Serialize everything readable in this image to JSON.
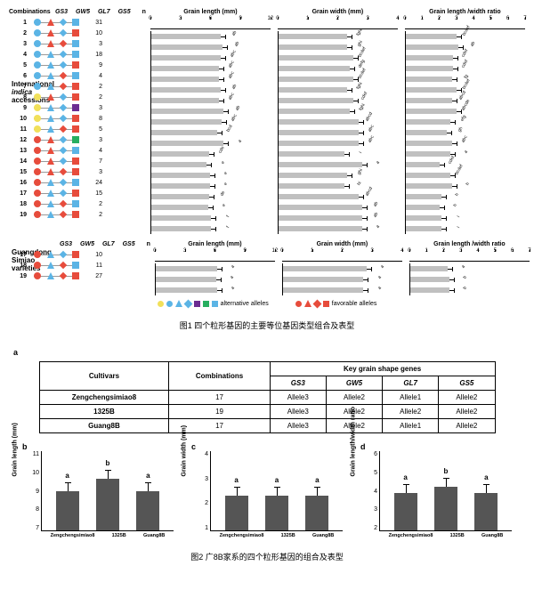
{
  "fig1": {
    "gene_headers": [
      "GS3",
      "GW5",
      "GL7",
      "GS5"
    ],
    "n_header": "n",
    "combo_label": "Combinations",
    "side_label_1a": "International",
    "side_label_1b": "indica",
    "side_label_1c": "accessions",
    "side_label_2a": "Guangdong",
    "side_label_2b": "Simiao",
    "side_label_2c": "varieties",
    "rows": [
      {
        "num": "1",
        "n": "31",
        "m": [
          [
            "c",
            "#5bb4e5"
          ],
          [
            "t",
            "#e74c3c"
          ],
          [
            "d",
            "#5bb4e5"
          ],
          [
            "s",
            "#5bb4e5"
          ]
        ]
      },
      {
        "num": "2",
        "n": "10",
        "m": [
          [
            "c",
            "#5bb4e5"
          ],
          [
            "t",
            "#e74c3c"
          ],
          [
            "d",
            "#5bb4e5"
          ],
          [
            "s",
            "#e74c3c"
          ]
        ]
      },
      {
        "num": "3",
        "n": "3",
        "m": [
          [
            "c",
            "#5bb4e5"
          ],
          [
            "t",
            "#e74c3c"
          ],
          [
            "d",
            "#e74c3c"
          ],
          [
            "s",
            "#5bb4e5"
          ]
        ]
      },
      {
        "num": "4",
        "n": "18",
        "m": [
          [
            "c",
            "#5bb4e5"
          ],
          [
            "t",
            "#5bb4e5"
          ],
          [
            "d",
            "#5bb4e5"
          ],
          [
            "s",
            "#5bb4e5"
          ]
        ]
      },
      {
        "num": "5",
        "n": "9",
        "m": [
          [
            "c",
            "#5bb4e5"
          ],
          [
            "t",
            "#5bb4e5"
          ],
          [
            "d",
            "#5bb4e5"
          ],
          [
            "s",
            "#e74c3c"
          ]
        ]
      },
      {
        "num": "6",
        "n": "4",
        "m": [
          [
            "c",
            "#5bb4e5"
          ],
          [
            "t",
            "#5bb4e5"
          ],
          [
            "d",
            "#e74c3c"
          ],
          [
            "s",
            "#5bb4e5"
          ]
        ]
      },
      {
        "num": "7",
        "n": "2",
        "m": [
          [
            "c",
            "#5bb4e5"
          ],
          [
            "t",
            "#5bb4e5"
          ],
          [
            "d",
            "#e74c3c"
          ],
          [
            "s",
            "#e74c3c"
          ]
        ]
      },
      {
        "num": "8",
        "n": "2",
        "m": [
          [
            "c",
            "#f1e05a"
          ],
          [
            "t",
            "#e74c3c"
          ],
          [
            "d",
            "#5bb4e5"
          ],
          [
            "s",
            "#e74c3c"
          ]
        ]
      },
      {
        "num": "9",
        "n": "3",
        "m": [
          [
            "c",
            "#f1e05a"
          ],
          [
            "t",
            "#5bb4e5"
          ],
          [
            "d",
            "#5bb4e5"
          ],
          [
            "s",
            "#6b2c91"
          ]
        ]
      },
      {
        "num": "10",
        "n": "8",
        "m": [
          [
            "c",
            "#f1e05a"
          ],
          [
            "t",
            "#5bb4e5"
          ],
          [
            "d",
            "#5bb4e5"
          ],
          [
            "s",
            "#e74c3c"
          ]
        ]
      },
      {
        "num": "11",
        "n": "5",
        "m": [
          [
            "c",
            "#f1e05a"
          ],
          [
            "t",
            "#5bb4e5"
          ],
          [
            "d",
            "#e74c3c"
          ],
          [
            "s",
            "#e74c3c"
          ]
        ]
      },
      {
        "num": "12",
        "n": "3",
        "m": [
          [
            "c",
            "#e74c3c"
          ],
          [
            "t",
            "#e74c3c"
          ],
          [
            "d",
            "#5bb4e5"
          ],
          [
            "s",
            "#27ae60"
          ]
        ]
      },
      {
        "num": "13",
        "n": "4",
        "m": [
          [
            "c",
            "#e74c3c"
          ],
          [
            "t",
            "#e74c3c"
          ],
          [
            "d",
            "#5bb4e5"
          ],
          [
            "s",
            "#5bb4e5"
          ]
        ]
      },
      {
        "num": "14",
        "n": "7",
        "m": [
          [
            "c",
            "#e74c3c"
          ],
          [
            "t",
            "#e74c3c"
          ],
          [
            "d",
            "#5bb4e5"
          ],
          [
            "s",
            "#e74c3c"
          ]
        ]
      },
      {
        "num": "15",
        "n": "3",
        "m": [
          [
            "c",
            "#e74c3c"
          ],
          [
            "t",
            "#e74c3c"
          ],
          [
            "d",
            "#e74c3c"
          ],
          [
            "s",
            "#e74c3c"
          ]
        ]
      },
      {
        "num": "16",
        "n": "24",
        "m": [
          [
            "c",
            "#e74c3c"
          ],
          [
            "t",
            "#5bb4e5"
          ],
          [
            "d",
            "#5bb4e5"
          ],
          [
            "s",
            "#5bb4e5"
          ]
        ]
      },
      {
        "num": "17",
        "n": "15",
        "m": [
          [
            "c",
            "#e74c3c"
          ],
          [
            "t",
            "#5bb4e5"
          ],
          [
            "d",
            "#5bb4e5"
          ],
          [
            "s",
            "#e74c3c"
          ]
        ]
      },
      {
        "num": "18",
        "n": "2",
        "m": [
          [
            "c",
            "#e74c3c"
          ],
          [
            "t",
            "#5bb4e5"
          ],
          [
            "d",
            "#e74c3c"
          ],
          [
            "s",
            "#5bb4e5"
          ]
        ]
      },
      {
        "num": "19",
        "n": "2",
        "m": [
          [
            "c",
            "#e74c3c"
          ],
          [
            "t",
            "#5bb4e5"
          ],
          [
            "d",
            "#e74c3c"
          ],
          [
            "s",
            "#e74c3c"
          ]
        ]
      }
    ],
    "rows2": [
      {
        "num": "17",
        "n": "10",
        "m": [
          [
            "c",
            "#e74c3c"
          ],
          [
            "t",
            "#5bb4e5"
          ],
          [
            "d",
            "#5bb4e5"
          ],
          [
            "s",
            "#e74c3c"
          ]
        ]
      },
      {
        "num": "18",
        "n": "11",
        "m": [
          [
            "c",
            "#e74c3c"
          ],
          [
            "t",
            "#5bb4e5"
          ],
          [
            "d",
            "#e74c3c"
          ],
          [
            "s",
            "#5bb4e5"
          ]
        ]
      },
      {
        "num": "19",
        "n": "27",
        "m": [
          [
            "c",
            "#e74c3c"
          ],
          [
            "t",
            "#5bb4e5"
          ],
          [
            "d",
            "#e74c3c"
          ],
          [
            "s",
            "#e74c3c"
          ]
        ]
      }
    ],
    "charts": [
      {
        "title": "Grain length (mm)",
        "min": 0,
        "max": 12,
        "ticks": [
          0,
          3,
          6,
          9,
          12
        ],
        "bars": [
          {
            "v": 7.0,
            "s": "ab"
          },
          {
            "v": 7.2,
            "s": "ab"
          },
          {
            "v": 7.0,
            "s": "abc"
          },
          {
            "v": 6.8,
            "s": "abc"
          },
          {
            "v": 6.8,
            "s": "abc"
          },
          {
            "v": 7.0,
            "s": "ab"
          },
          {
            "v": 6.8,
            "s": "abc"
          },
          {
            "v": 7.3,
            "s": "ab"
          },
          {
            "v": 7.1,
            "s": "abc"
          },
          {
            "v": 6.6,
            "s": "bcd"
          },
          {
            "v": 7.3,
            "s": "a"
          },
          {
            "v": 5.8,
            "s": "cde"
          },
          {
            "v": 5.6,
            "s": "e"
          },
          {
            "v": 5.9,
            "s": "e"
          },
          {
            "v": 5.9,
            "s": "e"
          },
          {
            "v": 5.8,
            "s": "de"
          },
          {
            "v": 5.7,
            "s": "e"
          },
          {
            "v": 6.0,
            "s": "f"
          },
          {
            "v": 6.0,
            "s": "f"
          }
        ]
      },
      {
        "title": "Grain width (mm)",
        "min": 0,
        "max": 4,
        "ticks": [
          0,
          1,
          2,
          3,
          4
        ],
        "bars": [
          {
            "v": 2.3,
            "s": "fghi"
          },
          {
            "v": 2.3,
            "s": "ghi"
          },
          {
            "v": 2.5,
            "s": "bcdef"
          },
          {
            "v": 2.4,
            "s": "defg"
          },
          {
            "v": 2.5,
            "s": "bcdef"
          },
          {
            "v": 2.3,
            "s": "fghi"
          },
          {
            "v": 2.5,
            "s": "cdef"
          },
          {
            "v": 2.4,
            "s": "fghi"
          },
          {
            "v": 2.7,
            "s": "abcd"
          },
          {
            "v": 2.7,
            "s": "abc"
          },
          {
            "v": 2.7,
            "s": "abc"
          },
          {
            "v": 2.2,
            "s": "i"
          },
          {
            "v": 2.8,
            "s": "a"
          },
          {
            "v": 2.3,
            "s": "ghi"
          },
          {
            "v": 2.2,
            "s": "hi"
          },
          {
            "v": 2.7,
            "s": "abcd"
          },
          {
            "v": 2.8,
            "s": "ab"
          },
          {
            "v": 2.8,
            "s": "ab"
          },
          {
            "v": 2.8,
            "s": "a"
          }
        ]
      },
      {
        "title": "Grain length /width  ratio",
        "min": 0,
        "max": 7,
        "ticks": [
          0,
          1,
          2,
          3,
          4,
          5,
          6,
          7
        ],
        "bars": [
          {
            "v": 3.0,
            "s": "bcdef"
          },
          {
            "v": 3.1,
            "s": "ab"
          },
          {
            "v": 2.8,
            "s": "cdef"
          },
          {
            "v": 2.8,
            "s": "cdef"
          },
          {
            "v": 2.7,
            "s": "fg"
          },
          {
            "v": 3.0,
            "s": "bcdef"
          },
          {
            "v": 2.7,
            "s": "abcd"
          },
          {
            "v": 3.0,
            "s": "abcde"
          },
          {
            "v": 2.6,
            "s": "efg"
          },
          {
            "v": 2.4,
            "s": "gh"
          },
          {
            "v": 2.7,
            "s": "abc"
          },
          {
            "v": 2.6,
            "s": "a"
          },
          {
            "v": 2.0,
            "s": "cdef"
          },
          {
            "v": 2.6,
            "s": "bcdef"
          },
          {
            "v": 2.7,
            "s": "h"
          },
          {
            "v": 2.1,
            "s": "h"
          },
          {
            "v": 2.0,
            "s": "h"
          },
          {
            "v": 2.1,
            "s": "i"
          },
          {
            "v": 2.1,
            "s": "i"
          }
        ]
      }
    ],
    "charts2": [
      {
        "title": "Grain length (mm)",
        "min": 0,
        "max": 12,
        "ticks": [
          0,
          3,
          6,
          9,
          12
        ],
        "bars": [
          {
            "v": 6.2,
            "s": "a"
          },
          {
            "v": 6.1,
            "s": "a"
          },
          {
            "v": 6.2,
            "s": "a"
          }
        ]
      },
      {
        "title": "Grain width (mm)",
        "min": 0,
        "max": 4,
        "ticks": [
          0,
          1,
          2,
          3,
          4
        ],
        "bars": [
          {
            "v": 2.8,
            "s": "a"
          },
          {
            "v": 2.7,
            "s": "a"
          },
          {
            "v": 2.7,
            "s": "a"
          }
        ]
      },
      {
        "title": "Grain length /width  ratio",
        "min": 0,
        "max": 7,
        "ticks": [
          0,
          1,
          2,
          3,
          4,
          5,
          6,
          7
        ],
        "bars": [
          {
            "v": 2.2,
            "s": "a"
          },
          {
            "v": 2.3,
            "s": "b"
          },
          {
            "v": 2.3,
            "s": "b"
          }
        ]
      }
    ],
    "legend_alt": "alternative  alleles",
    "legend_fav": "favorable  alleles",
    "caption": "图1    四个粒形基因的主要等位基因类型组合及表型"
  },
  "fig2": {
    "a_label": "a",
    "table": {
      "h_cultivars": "Cultivars",
      "h_combinations": "Combinations",
      "h_key": "Key grain shape genes",
      "genes": [
        "GS3",
        "GW5",
        "GL7",
        "GS5"
      ],
      "rows": [
        {
          "c": "Zengchengsimiao8",
          "comb": "17",
          "a": [
            "Allele3",
            "Allele2",
            "Allele1",
            "Allele2"
          ]
        },
        {
          "c": "1325B",
          "comb": "19",
          "a": [
            "Allele3",
            "Allele2",
            "Allele2",
            "Allele2"
          ]
        },
        {
          "c": "Guang8B",
          "comb": "17",
          "a": [
            "Allele3",
            "Allele2",
            "Allele1",
            "Allele2"
          ]
        }
      ]
    },
    "bcharts": [
      {
        "label": "b",
        "ylabel": "Grain  length (mm)",
        "ymin": 7,
        "ymax": 11,
        "yticks": [
          "11",
          "10",
          "9",
          "8",
          "7"
        ],
        "bars": [
          {
            "v": 9.0,
            "s": "a"
          },
          {
            "v": 9.6,
            "s": "b"
          },
          {
            "v": 9.0,
            "s": "a"
          }
        ]
      },
      {
        "label": "c",
        "ylabel": "Grain  width (mm)",
        "ymin": 1,
        "ymax": 4,
        "yticks": [
          "4",
          "3",
          "2",
          "1"
        ],
        "bars": [
          {
            "v": 2.3,
            "s": "a"
          },
          {
            "v": 2.3,
            "s": "a"
          },
          {
            "v": 2.3,
            "s": "a"
          }
        ]
      },
      {
        "label": "d",
        "ylabel": "Grain length/width  ratio",
        "ymin": 2,
        "ymax": 6,
        "yticks": [
          "6",
          "5",
          "4",
          "3",
          "2"
        ],
        "bars": [
          {
            "v": 3.9,
            "s": "a"
          },
          {
            "v": 4.2,
            "s": "b"
          },
          {
            "v": 3.9,
            "s": "a"
          }
        ]
      }
    ],
    "xlabels": [
      "Zengchengsimiao8",
      "1325B",
      "Guang8B"
    ],
    "caption": "图2   广8B家系的四个粒形基因的组合及表型"
  }
}
